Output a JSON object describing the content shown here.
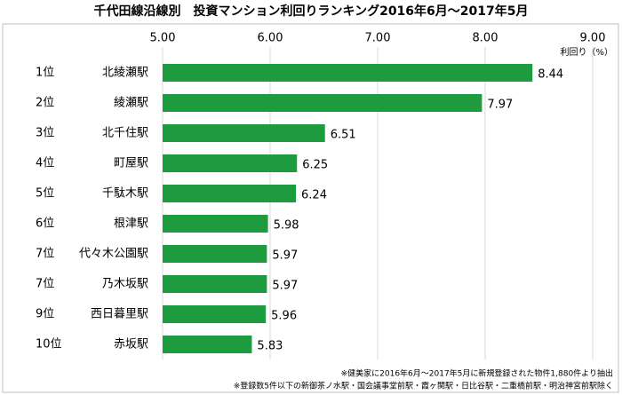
{
  "chart_data": {
    "type": "hbar",
    "title": "千代田線沿線別　投資マンション利回りランキング2016年6月～2017年5月",
    "value_axis_label": "利回り（%）",
    "ranks": [
      "1位",
      "2位",
      "3位",
      "4位",
      "5位",
      "6位",
      "7位",
      "7位",
      "9位",
      "10位"
    ],
    "categories": [
      "北綾瀬駅",
      "綾瀬駅",
      "北千住駅",
      "町屋駅",
      "千駄木駅",
      "根津駅",
      "代々木公園駅",
      "乃木坂駅",
      "西日暮里駅",
      "赤坂駅"
    ],
    "values": [
      8.44,
      7.97,
      6.51,
      6.25,
      6.24,
      5.98,
      5.97,
      5.97,
      5.96,
      5.83
    ],
    "color": "#1e9a3f",
    "xlim": [
      5,
      9
    ],
    "xticks": [
      {
        "value": 5,
        "label": "5.00"
      },
      {
        "value": 6,
        "label": "6.00"
      },
      {
        "value": 7,
        "label": "7.00"
      },
      {
        "value": 8,
        "label": "8.00"
      },
      {
        "value": 9,
        "label": "9.00"
      }
    ],
    "grid": true,
    "notes": [
      "※健美家に2016年6月～2017年5月に新規登録された物件1,880件より抽出",
      "※登録数5件以下の新御茶ノ水駅・国会議事堂前駅・霞ヶ関駅・日比谷駅・二重橋前駅・明治神宮前駅除く"
    ]
  }
}
